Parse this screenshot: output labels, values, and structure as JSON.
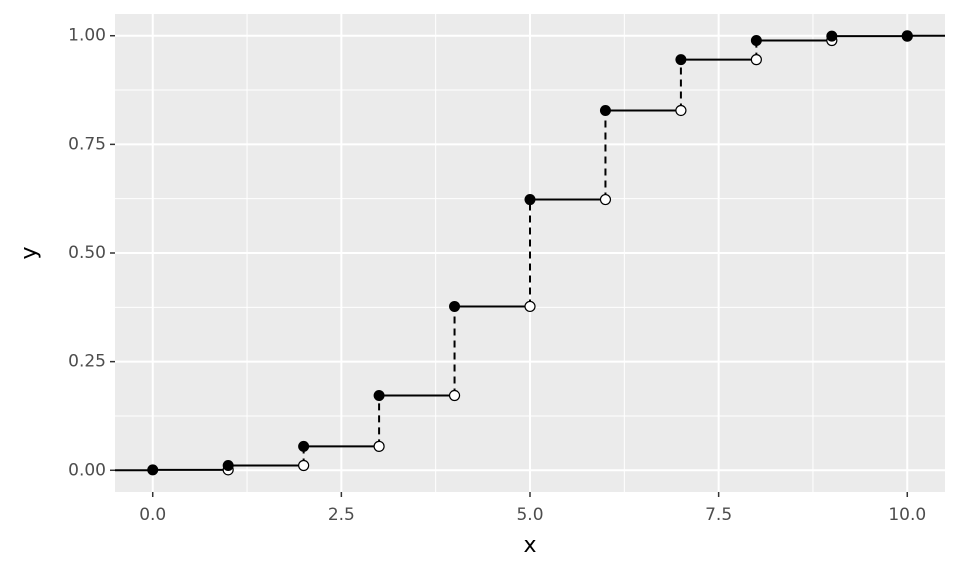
{
  "chart_data": {
    "type": "step",
    "x_label": "x",
    "y_label": "y",
    "x": [
      0,
      1,
      2,
      3,
      4,
      5,
      6,
      7,
      8,
      9,
      10
    ],
    "values": [
      0.001,
      0.011,
      0.055,
      0.172,
      0.377,
      0.623,
      0.828,
      0.945,
      0.989,
      0.999,
      1.0
    ],
    "color": "#000000",
    "xlim": [
      -0.5,
      10.5
    ],
    "ylim": [
      -0.05,
      1.05
    ],
    "xticks": [
      {
        "value": 0,
        "label": "0.0"
      },
      2.5,
      {
        "value": 5,
        "label": "5.0"
      },
      7.5,
      {
        "value": 10,
        "label": "10.0"
      }
    ],
    "yticks": [
      {
        "value": 0,
        "label": "0.00"
      },
      0.25,
      {
        "value": 0.5,
        "label": "0.50"
      },
      0.75,
      {
        "value": 1,
        "label": "1.00"
      }
    ],
    "grid": true
  }
}
